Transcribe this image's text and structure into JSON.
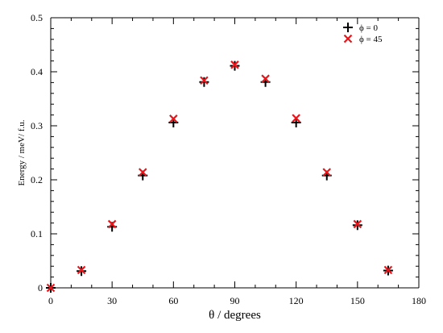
{
  "chart_data": {
    "type": "scatter",
    "xlabel": "θ / degrees",
    "ylabel": "Energy / meV/ f.u.",
    "xlim": [
      0,
      180
    ],
    "ylim": [
      0,
      0.5
    ],
    "x_ticks": [
      "0",
      "30",
      "60",
      "90",
      "120",
      "150",
      "180"
    ],
    "y_ticks": [
      "0",
      "0.1",
      "0.2",
      "0.3",
      "0.4",
      "0.5"
    ],
    "x_tick_values": [
      0,
      30,
      60,
      90,
      120,
      150,
      180
    ],
    "y_tick_values": [
      0,
      0.1,
      0.2,
      0.3,
      0.4,
      0.5
    ],
    "grid": false,
    "legend_position": "top-right",
    "series": [
      {
        "name": "ϕ = 0",
        "marker": "plus",
        "color": "#000000",
        "x": [
          0,
          15,
          30,
          45,
          60,
          75,
          90,
          105,
          120,
          135,
          150,
          165
        ],
        "y": [
          0,
          0.031,
          0.113,
          0.208,
          0.306,
          0.381,
          0.411,
          0.381,
          0.306,
          0.208,
          0.116,
          0.032
        ]
      },
      {
        "name": "ϕ = 45",
        "marker": "cross",
        "color": "#e8161b",
        "x": [
          0,
          15,
          30,
          45,
          60,
          75,
          90,
          105,
          120,
          135,
          150,
          165
        ],
        "y": [
          0,
          0.033,
          0.118,
          0.214,
          0.313,
          0.384,
          0.413,
          0.387,
          0.314,
          0.214,
          0.118,
          0.033
        ]
      }
    ]
  }
}
